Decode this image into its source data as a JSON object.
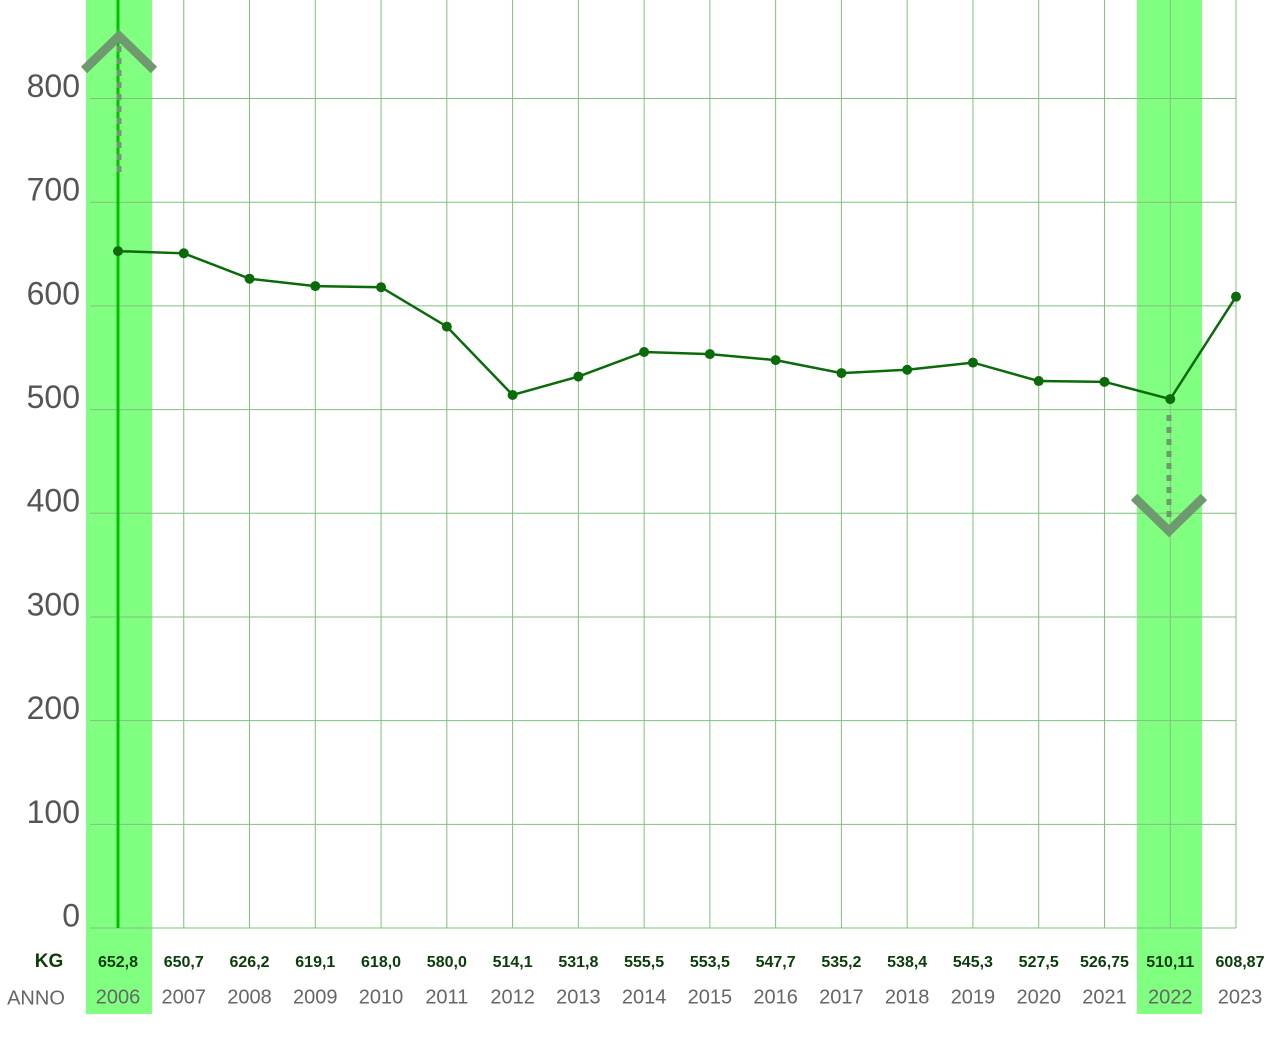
{
  "chart_data": {
    "type": "line",
    "categories": [
      "2006",
      "2007",
      "2008",
      "2009",
      "2010",
      "2011",
      "2012",
      "2013",
      "2014",
      "2015",
      "2016",
      "2017",
      "2018",
      "2019",
      "2020",
      "2021",
      "2022",
      "2023"
    ],
    "series": [
      {
        "name": "KG",
        "color": "#0b6b0b",
        "values": [
          652.8,
          650.7,
          626.2,
          619.1,
          618.0,
          580.0,
          514.1,
          531.8,
          555.5,
          553.5,
          547.7,
          535.2,
          538.4,
          545.3,
          527.5,
          526.75,
          510.11,
          608.87
        ],
        "value_labels": [
          "652,8",
          "650,7",
          "626,2",
          "619,1",
          "618,0",
          "580,0",
          "514,1",
          "531,8",
          "555,5",
          "553,5",
          "547,7",
          "535,2",
          "538,4",
          "545,3",
          "527,5",
          "526,75",
          "510,11",
          "608,87"
        ]
      }
    ],
    "row_label_values": "KG",
    "row_label_categories": "ANNO",
    "ylim": [
      0,
      895
    ],
    "yticks": [
      0,
      100,
      200,
      300,
      400,
      500,
      600,
      700,
      800
    ],
    "grid": true
  }
}
